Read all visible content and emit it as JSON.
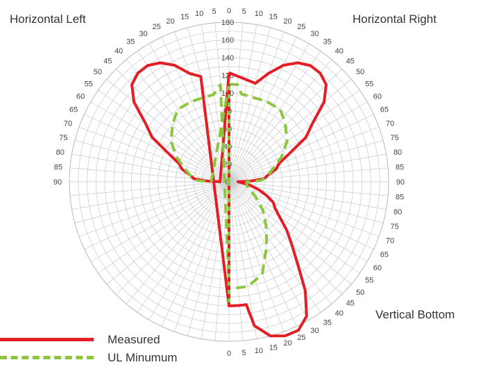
{
  "labels": {
    "horizontal_left": "Horizontal Left",
    "horizontal_right": "Horizontal Right",
    "vertical_bottom": "Vertical Bottom"
  },
  "legend": [
    {
      "name": "Measured",
      "color": "#e31e24",
      "style": "solid"
    },
    {
      "name": "UL Minumum",
      "color": "#8cc63f",
      "style": "dashed"
    }
  ],
  "chart_data": {
    "type": "radar",
    "radial_ticks": [
      0,
      20,
      40,
      60,
      80,
      100,
      120,
      140,
      160,
      180
    ],
    "rlim": [
      0,
      180
    ],
    "angle_labels": {
      "top_left": [
        "5",
        "10",
        "15",
        "20",
        "25",
        "30",
        "35",
        "40",
        "45",
        "50",
        "55",
        "60",
        "65",
        "70",
        "75",
        "80",
        "85",
        "90"
      ],
      "top": "0",
      "top_right": [
        "5",
        "10",
        "15",
        "20",
        "25",
        "30",
        "35",
        "40",
        "45",
        "50",
        "55",
        "60",
        "65",
        "70",
        "75",
        "80",
        "85",
        "90"
      ],
      "bottom_right": [
        "85",
        "80",
        "75",
        "70",
        "65",
        "60",
        "55",
        "50",
        "45",
        "40",
        "35",
        "30",
        "25",
        "20",
        "15",
        "10",
        "5",
        "0"
      ]
    },
    "series": [
      {
        "name": "Measured",
        "color": "#e31e24",
        "points": [
          [
            0,
            123
          ],
          [
            15,
            115
          ],
          [
            20,
            130
          ],
          [
            25,
            145
          ],
          [
            30,
            155
          ],
          [
            35,
            160
          ],
          [
            40,
            160
          ],
          [
            45,
            155
          ],
          [
            50,
            140
          ],
          [
            55,
            115
          ],
          [
            60,
            100
          ],
          [
            65,
            75
          ],
          [
            70,
            60
          ],
          [
            75,
            55
          ],
          [
            80,
            45
          ],
          [
            85,
            40
          ],
          [
            88,
            25
          ],
          [
            90,
            10
          ],
          [
            95,
            15
          ],
          [
            100,
            25
          ],
          [
            105,
            35
          ],
          [
            110,
            45
          ],
          [
            115,
            55
          ],
          [
            120,
            60
          ],
          [
            125,
            70
          ],
          [
            130,
            85
          ],
          [
            135,
            100
          ],
          [
            140,
            120
          ],
          [
            145,
            150
          ],
          [
            150,
            175
          ],
          [
            155,
            185
          ],
          [
            160,
            185
          ],
          [
            165,
            180
          ],
          [
            170,
            165
          ],
          [
            172,
            140
          ],
          [
            175,
            140
          ],
          [
            178,
            140
          ],
          [
            180,
            140
          ],
          [
            345,
            123
          ],
          [
            340,
            130
          ],
          [
            335,
            145
          ],
          [
            330,
            155
          ],
          [
            325,
            160
          ],
          [
            320,
            160
          ],
          [
            315,
            155
          ],
          [
            310,
            140
          ],
          [
            305,
            115
          ],
          [
            300,
            100
          ],
          [
            295,
            75
          ],
          [
            290,
            60
          ],
          [
            285,
            55
          ],
          [
            280,
            45
          ],
          [
            275,
            40
          ],
          [
            272,
            25
          ],
          [
            270,
            10
          ],
          [
            0,
            123
          ]
        ]
      },
      {
        "name": "UL Minumum",
        "color": "#8cc63f",
        "points": [
          [
            0,
            110
          ],
          [
            5,
            110
          ],
          [
            8,
            100
          ],
          [
            25,
            100
          ],
          [
            35,
            100
          ],
          [
            40,
            95
          ],
          [
            45,
            90
          ],
          [
            55,
            80
          ],
          [
            65,
            65
          ],
          [
            75,
            50
          ],
          [
            80,
            45
          ],
          [
            85,
            40
          ],
          [
            88,
            35
          ],
          [
            90,
            20
          ],
          [
            100,
            20
          ],
          [
            110,
            25
          ],
          [
            120,
            35
          ],
          [
            130,
            50
          ],
          [
            140,
            65
          ],
          [
            150,
            85
          ],
          [
            155,
            95
          ],
          [
            160,
            110
          ],
          [
            165,
            115
          ],
          [
            170,
            120
          ],
          [
            175,
            120
          ],
          [
            180,
            120
          ],
          [
            355,
            110
          ],
          [
            350,
            100
          ],
          [
            335,
            100
          ],
          [
            325,
            100
          ],
          [
            320,
            95
          ],
          [
            315,
            90
          ],
          [
            305,
            80
          ],
          [
            295,
            65
          ],
          [
            285,
            50
          ],
          [
            280,
            45
          ],
          [
            275,
            40
          ],
          [
            272,
            35
          ],
          [
            270,
            20
          ],
          [
            0,
            110
          ]
        ]
      }
    ]
  }
}
